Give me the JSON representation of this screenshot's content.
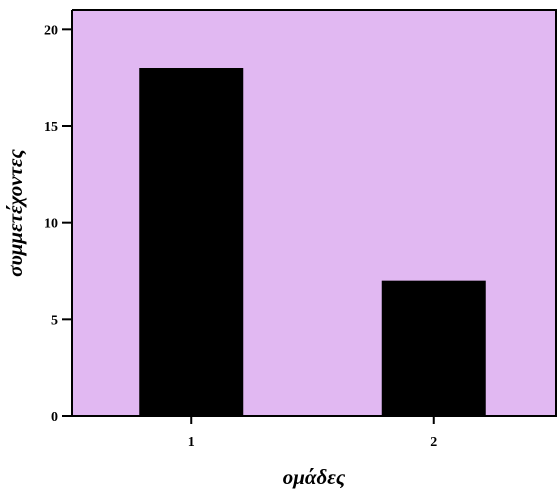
{
  "chart_data": {
    "type": "bar",
    "title": "",
    "xlabel": "ομάδες",
    "ylabel": "συμμετέχοντες",
    "categories": [
      "1",
      "2"
    ],
    "values": [
      18,
      7
    ],
    "ylim": [
      0,
      21
    ],
    "yticks": [
      0,
      5,
      10,
      15,
      20
    ],
    "grid": false,
    "legend": "none",
    "colors": {
      "plot_background": "#e1b8f2",
      "bar": "#000000",
      "axis": "#000000"
    }
  }
}
